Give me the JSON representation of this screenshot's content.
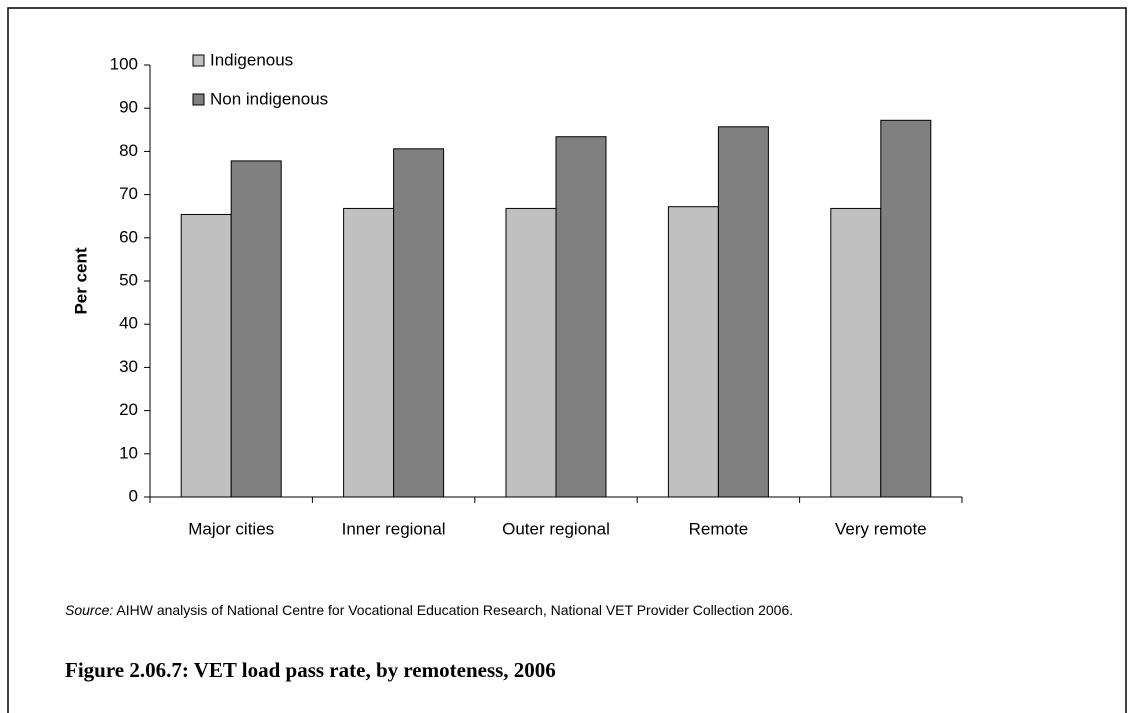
{
  "chart_data": {
    "type": "bar",
    "caption": "Figure 2.06.7: VET load pass rate, by remoteness, 2006",
    "source_label": "Source:",
    "source": "AIHW analysis of National Centre for Vocational Education Research, National VET Provider Collection 2006.",
    "y_label": "Per cent",
    "categories": [
      "Major cities",
      "Inner regional",
      "Outer regional",
      "Remote",
      "Very remote"
    ],
    "series": [
      {
        "name": "Indigenous",
        "color": "#c0c0c0",
        "values": [
          65.4,
          66.8,
          66.8,
          67.2,
          66.8
        ]
      },
      {
        "name": "Non indigenous",
        "color": "#808080",
        "values": [
          77.8,
          80.6,
          83.4,
          85.7,
          87.2
        ]
      }
    ],
    "ylim": [
      0,
      100
    ],
    "yticks": [
      0,
      10,
      20,
      30,
      40,
      50,
      60,
      70,
      80,
      90,
      100
    ],
    "grid": false,
    "legend": "top-left"
  }
}
